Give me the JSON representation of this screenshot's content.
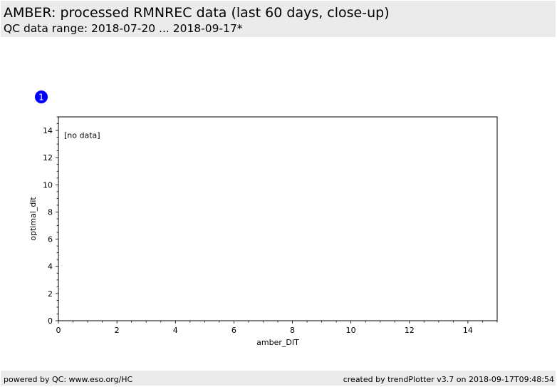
{
  "header": {
    "title": "AMBER: processed RMNREC data (last 60 days, close-up)",
    "subtitle": "QC data range: 2018-07-20 ... 2018-09-17*"
  },
  "footer": {
    "left": "powered by QC: www.eso.org/HC",
    "right": "created by trendPlotter v3.7 on 2018-09-17T09:48:54"
  },
  "chart_data": {
    "type": "scatter",
    "panel_number": "1",
    "xlabel": "amber_DIT",
    "ylabel": "optimal_dit",
    "xlim": [
      0,
      15
    ],
    "ylim": [
      0,
      15
    ],
    "xticks": [
      0,
      2,
      4,
      6,
      8,
      10,
      12,
      14
    ],
    "yticks": [
      0,
      2,
      4,
      6,
      8,
      10,
      12,
      14
    ],
    "annotation": "[no data]",
    "grid": false,
    "series": [],
    "colors": {
      "panel_marker": "#0000ff",
      "panel_marker_text": "#ffffff"
    }
  }
}
